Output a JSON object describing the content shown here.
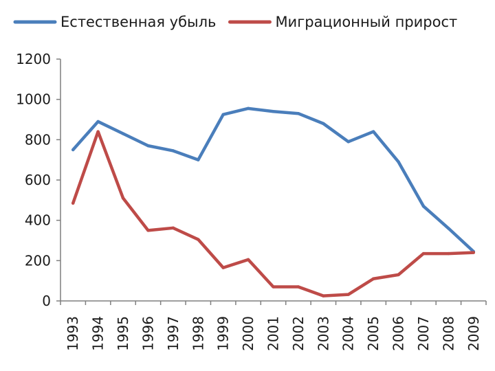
{
  "chart_data": {
    "type": "line",
    "categories": [
      "1993",
      "1994",
      "1995",
      "1996",
      "1997",
      "1998",
      "1999",
      "2000",
      "2001",
      "2002",
      "2003",
      "2004",
      "2005",
      "2006",
      "2007",
      "2008",
      "2009"
    ],
    "series": [
      {
        "name": "Естественная убыль",
        "color": "#4a7ebb",
        "values": [
          750,
          890,
          830,
          770,
          745,
          700,
          925,
          955,
          940,
          930,
          880,
          790,
          840,
          690,
          470,
          360,
          245
        ]
      },
      {
        "name": "Миграционный прирост",
        "color": "#be4b48",
        "values": [
          485,
          840,
          510,
          350,
          362,
          305,
          165,
          205,
          70,
          70,
          25,
          32,
          110,
          130,
          235,
          235,
          240
        ]
      }
    ],
    "yticks": [
      "0",
      "200",
      "400",
      "600",
      "800",
      "1000",
      "1200"
    ],
    "ylim": [
      0,
      1200
    ],
    "grid": false,
    "legend_position": "top"
  }
}
